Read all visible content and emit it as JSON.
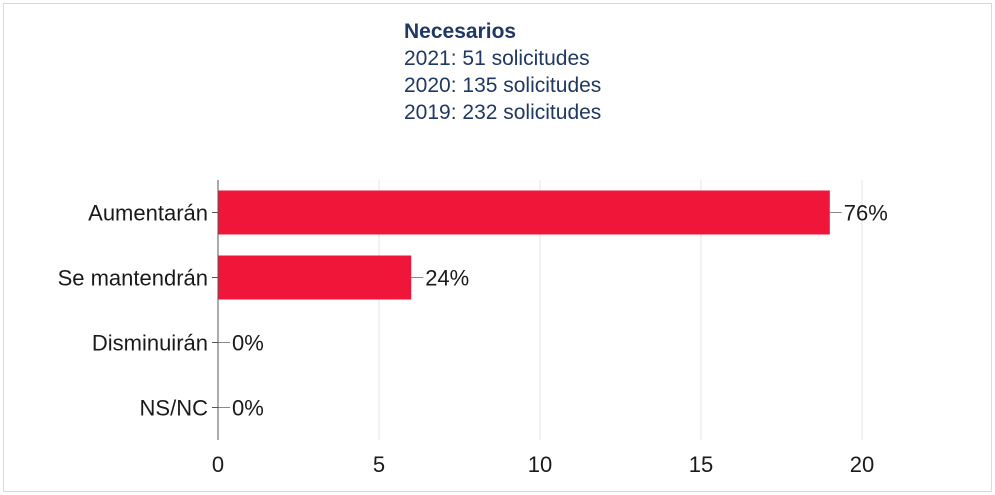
{
  "header": {
    "title": "Necesarios",
    "lines": [
      "2021: 51 solicitudes",
      "2020: 135 solicitudes",
      "2019: 232 solicitudes"
    ]
  },
  "colors": {
    "bar": "#f0163a",
    "title": "#1f3864",
    "grid": "#e6e6e6"
  },
  "chart_data": {
    "type": "bar",
    "orientation": "horizontal",
    "categories": [
      "Aumentarán",
      "Se mantendrán",
      "Disminuirán",
      "NS/NC"
    ],
    "values": [
      19,
      6,
      0,
      0
    ],
    "data_labels": [
      "76%",
      "24%",
      "0%",
      "0%"
    ],
    "xlim": [
      0,
      20
    ],
    "xticks": [
      0,
      5,
      10,
      15,
      20
    ],
    "grid": true,
    "legend": false
  }
}
